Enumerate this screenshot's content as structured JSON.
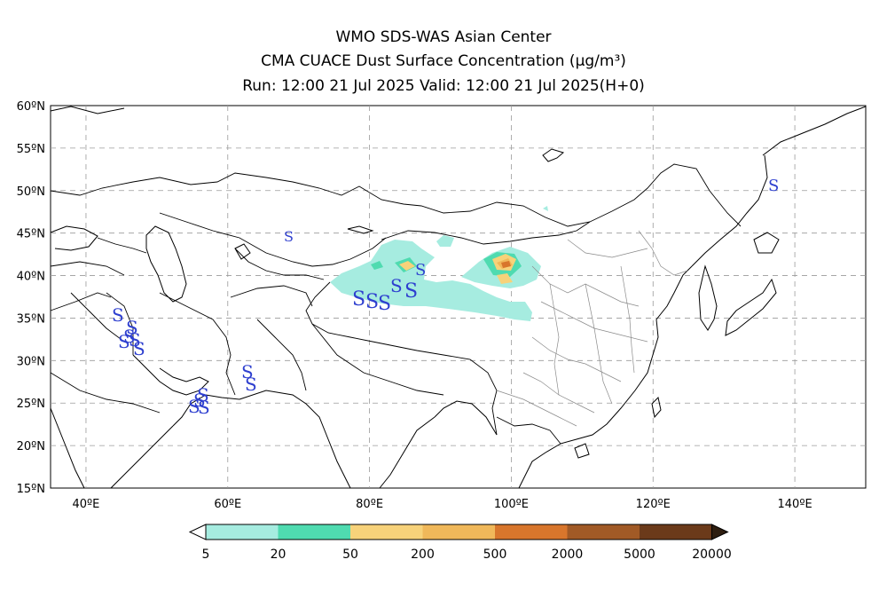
{
  "header": {
    "line1": "WMO SDS-WAS Asian Center",
    "line2": "CMA CUACE Dust Surface Concentration (μg/m³)",
    "line3": "Run: 12:00 21 Jul 2025    Valid: 12:00 21 Jul 2025(H+0)"
  },
  "map": {
    "lat_labels": [
      "60ºN",
      "55ºN",
      "50ºN",
      "45ºN",
      "40ºN",
      "35ºN",
      "30ºN",
      "25ºN",
      "20ºN",
      "15ºN"
    ],
    "lon_labels": [
      "40ºE",
      "60ºE",
      "80ºE",
      "100ºE",
      "120ºE",
      "140ºE"
    ],
    "extent": {
      "lon_min": 35,
      "lon_max": 150,
      "lat_min": 15,
      "lat_max": 60
    },
    "station_symbol": "S"
  },
  "colorbar": {
    "levels": [
      "5",
      "20",
      "50",
      "200",
      "500",
      "2000",
      "5000",
      "20000"
    ],
    "colors": [
      "#a6ece0",
      "#4fdbb0",
      "#f7d27a",
      "#f0b85a",
      "#d8762c",
      "#a15a26",
      "#6b3a1a",
      "#2e1e10"
    ]
  }
}
